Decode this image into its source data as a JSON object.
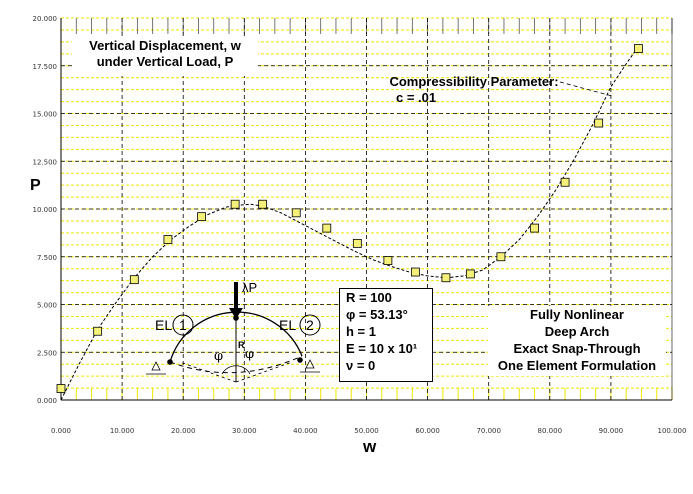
{
  "chart_data": {
    "type": "line",
    "xlabel": "w",
    "ylabel": "P",
    "xlim": [
      0,
      100
    ],
    "ylim": [
      0,
      20
    ],
    "x_ticks": [
      "0.000",
      "10.000",
      "20.000",
      "30.000",
      "40.000",
      "50.000",
      "60.000",
      "70.000",
      "80.000",
      "90.000",
      "100.000"
    ],
    "y_ticks": [
      "0.000",
      "2.500",
      "5.000",
      "7.500",
      "10.000",
      "12.500",
      "15.000",
      "17.500",
      "20.000"
    ],
    "grid": true,
    "series": [
      {
        "curve_x": [
          0,
          3,
          6,
          9,
          12,
          15,
          18,
          21,
          24,
          27,
          29,
          31,
          33,
          36,
          39,
          42,
          45,
          48,
          51,
          54,
          57,
          60,
          63,
          66,
          69,
          72,
          75,
          78,
          81,
          84,
          87,
          90,
          92.5,
          94.5
        ],
        "curve_y": [
          0,
          1.9,
          3.7,
          5.1,
          6.4,
          7.5,
          8.4,
          9.1,
          9.7,
          10.1,
          10.2,
          10.25,
          10.15,
          9.8,
          9.3,
          8.8,
          8.3,
          7.8,
          7.35,
          7.0,
          6.7,
          6.5,
          6.4,
          6.5,
          6.8,
          7.5,
          8.4,
          9.6,
          11.0,
          12.6,
          14.4,
          16.4,
          17.6,
          18.5
        ],
        "points": [
          [
            0,
            0.6
          ],
          [
            6,
            3.6
          ],
          [
            12,
            6.3
          ],
          [
            17.5,
            8.4
          ],
          [
            23,
            9.6
          ],
          [
            28.5,
            10.25
          ],
          [
            33,
            10.25
          ],
          [
            38.5,
            9.8
          ],
          [
            43.5,
            9.0
          ],
          [
            48.5,
            8.2
          ],
          [
            53.5,
            7.3
          ],
          [
            58,
            6.7
          ],
          [
            63,
            6.4
          ],
          [
            67,
            6.6
          ],
          [
            72,
            7.5
          ],
          [
            77.5,
            9.0
          ],
          [
            82.5,
            11.4
          ],
          [
            88,
            14.5
          ],
          [
            94.5,
            18.4
          ]
        ]
      }
    ]
  },
  "labels": {
    "title_box": [
      "Vertical Displacement, w",
      "under Vertical Load, P"
    ],
    "compress": [
      "Compressibility Parameter:",
      "c = .01"
    ],
    "params": [
      "R = 100",
      "φ = 53.13°",
      "h = 1",
      "E = 10 x 10¹",
      "ν = 0"
    ],
    "description": [
      "Fully Nonlinear",
      "Deep Arch",
      "Exact Snap-Through",
      "One Element Formulation"
    ],
    "diagram": {
      "load": "λP",
      "radius": "R",
      "phi": "φ",
      "el1": "EL",
      "el1_num": "1",
      "el2": "EL",
      "el2_num": "2"
    }
  },
  "colors": {
    "grid_yellow": "#f0e600",
    "marker_fill": "#f5f07a",
    "line": "#000000"
  }
}
